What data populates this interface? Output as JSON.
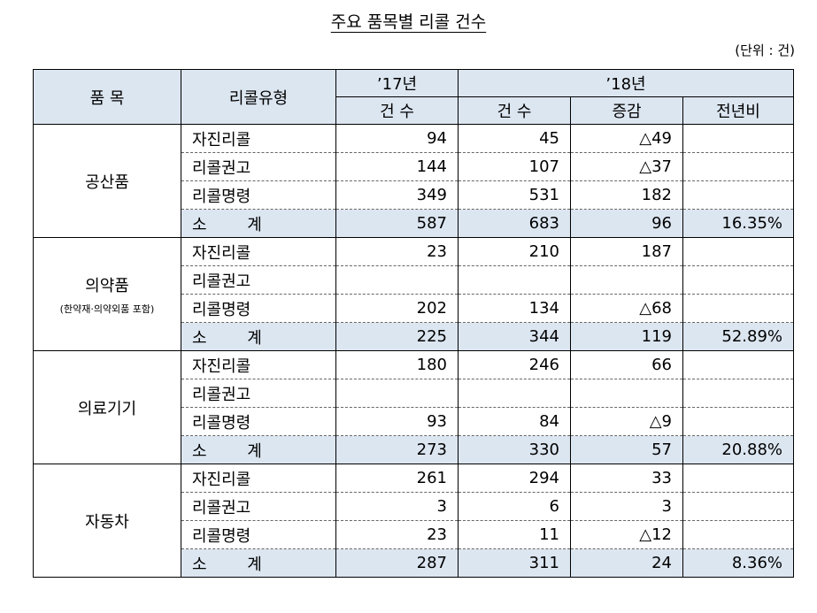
{
  "title": "주요 품목별 리콜 건수",
  "unit": "(단위 : 건)",
  "headers": {
    "item": "품 목",
    "type": "리콜유형",
    "y17": "’17년",
    "y18": "’18년",
    "count17": "건 수",
    "count18": "건 수",
    "change": "증감",
    "ratio": "전년비"
  },
  "groups": [
    {
      "name": "공산품",
      "note": "",
      "rows": [
        {
          "type": "자진리콜",
          "y17": "94",
          "y18": "45",
          "change": "△49",
          "ratio": ""
        },
        {
          "type": "리콜권고",
          "y17": "144",
          "y18": "107",
          "change": "△37",
          "ratio": ""
        },
        {
          "type": "리콜명령",
          "y17": "349",
          "y18": "531",
          "change": "182",
          "ratio": ""
        },
        {
          "type": "소 계",
          "y17": "587",
          "y18": "683",
          "change": "96",
          "ratio": "16.35%"
        }
      ]
    },
    {
      "name": "의약품",
      "note": "(한약재·의약외품 포함)",
      "rows": [
        {
          "type": "자진리콜",
          "y17": "23",
          "y18": "210",
          "change": "187",
          "ratio": ""
        },
        {
          "type": "리콜권고",
          "y17": "",
          "y18": "",
          "change": "",
          "ratio": ""
        },
        {
          "type": "리콜명령",
          "y17": "202",
          "y18": "134",
          "change": "△68",
          "ratio": ""
        },
        {
          "type": "소 계",
          "y17": "225",
          "y18": "344",
          "change": "119",
          "ratio": "52.89%"
        }
      ]
    },
    {
      "name": "의료기기",
      "note": "",
      "rows": [
        {
          "type": "자진리콜",
          "y17": "180",
          "y18": "246",
          "change": "66",
          "ratio": ""
        },
        {
          "type": "리콜권고",
          "y17": "",
          "y18": "",
          "change": "",
          "ratio": ""
        },
        {
          "type": "리콜명령",
          "y17": "93",
          "y18": "84",
          "change": "△9",
          "ratio": ""
        },
        {
          "type": "소 계",
          "y17": "273",
          "y18": "330",
          "change": "57",
          "ratio": "20.88%"
        }
      ]
    },
    {
      "name": "자동차",
      "note": "",
      "rows": [
        {
          "type": "자진리콜",
          "y17": "261",
          "y18": "294",
          "change": "33",
          "ratio": ""
        },
        {
          "type": "리콜권고",
          "y17": "3",
          "y18": "6",
          "change": "3",
          "ratio": ""
        },
        {
          "type": "리콜명령",
          "y17": "23",
          "y18": "11",
          "change": "△12",
          "ratio": ""
        },
        {
          "type": "소 계",
          "y17": "287",
          "y18": "311",
          "change": "24",
          "ratio": "8.36%"
        }
      ]
    }
  ]
}
